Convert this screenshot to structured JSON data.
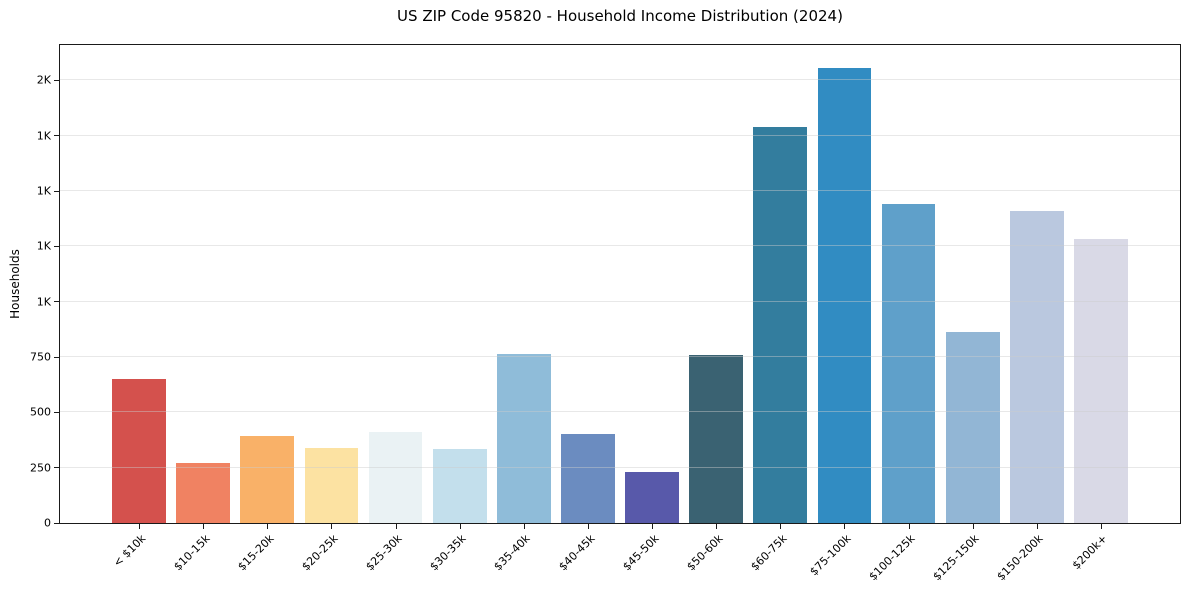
{
  "chart_data": {
    "type": "bar",
    "title": "US ZIP Code 95820 - Household Income Distribution (2024)",
    "xlabel": "",
    "ylabel": "Households",
    "categories": [
      "< $10k",
      "$10-15k",
      "$15-20k",
      "$20-25k",
      "$25-30k",
      "$30-35k",
      "$35-40k",
      "$40-45k",
      "$45-50k",
      "$50-60k",
      "$60-75k",
      "$75-100k",
      "$100-125k",
      "$125-150k",
      "$150-200k",
      "$200k+"
    ],
    "values": [
      650,
      270,
      395,
      340,
      410,
      335,
      765,
      400,
      230,
      760,
      1790,
      2055,
      1440,
      865,
      1410,
      1285
    ],
    "bar_colors": [
      "#d4514d",
      "#f08262",
      "#f9b168",
      "#fce2a2",
      "#eaf2f4",
      "#c3dfec",
      "#8fbcd9",
      "#6b8cc0",
      "#5859aa",
      "#3a6272",
      "#337d9e",
      "#318cc2",
      "#5fa0ca",
      "#92b6d5",
      "#bac8df",
      "#d9d9e6"
    ],
    "ylim": [
      0,
      2160
    ],
    "yticks": [
      {
        "value": 0,
        "label": "0"
      },
      {
        "value": 250,
        "label": "250"
      },
      {
        "value": 500,
        "label": "500"
      },
      {
        "value": 750,
        "label": "750"
      },
      {
        "value": 1000,
        "label": "1K"
      },
      {
        "value": 1250,
        "label": "1K"
      },
      {
        "value": 1500,
        "label": "1K"
      },
      {
        "value": 1750,
        "label": "1K"
      },
      {
        "value": 2000,
        "label": "2K"
      }
    ],
    "grid": true,
    "grid_axis": "y",
    "legend": "none",
    "x_tick_rotation": 45
  }
}
